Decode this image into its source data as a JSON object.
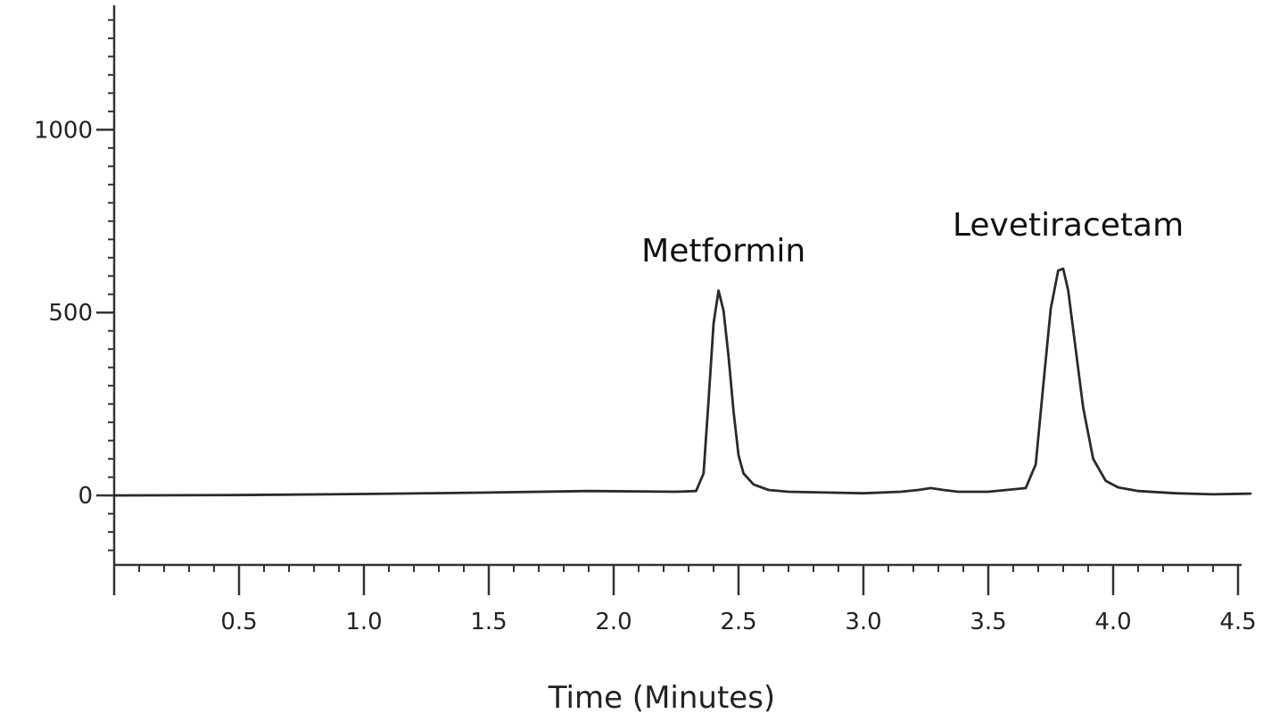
{
  "chart_data": {
    "type": "line",
    "title": "",
    "xlabel": "Time (Minutes)",
    "ylabel": "",
    "xlim": [
      0.0,
      4.55
    ],
    "ylim": [
      -190,
      1340
    ],
    "x_ticks": [
      {
        "value": 0.5,
        "label": "0.5"
      },
      {
        "value": 1.0,
        "label": "1.0"
      },
      {
        "value": 1.5,
        "label": "1.5"
      },
      {
        "value": 2.0,
        "label": "2.0"
      },
      {
        "value": 2.5,
        "label": "2.5"
      },
      {
        "value": 3.0,
        "label": "3.0"
      },
      {
        "value": 3.5,
        "label": "3.5"
      },
      {
        "value": 4.0,
        "label": "4.0"
      },
      {
        "value": 4.5,
        "label": "4.5"
      }
    ],
    "y_ticks": [
      {
        "value": 0,
        "label": "0"
      },
      {
        "value": 500,
        "label": "500"
      },
      {
        "value": 1000,
        "label": "1000"
      }
    ],
    "x_minor_step": 0.1,
    "y_minor_step": 50,
    "grid": false,
    "series": [
      {
        "name": "",
        "x": [
          0.0,
          0.5,
          1.0,
          1.5,
          1.9,
          2.25,
          2.33,
          2.36,
          2.38,
          2.4,
          2.42,
          2.44,
          2.46,
          2.48,
          2.5,
          2.52,
          2.56,
          2.62,
          2.7,
          2.85,
          3.0,
          3.15,
          3.22,
          3.27,
          3.32,
          3.38,
          3.5,
          3.65,
          3.69,
          3.72,
          3.75,
          3.78,
          3.8,
          3.82,
          3.85,
          3.88,
          3.92,
          3.97,
          4.02,
          4.1,
          4.25,
          4.4,
          4.55
        ],
        "y": [
          0,
          1,
          4,
          8,
          12,
          10,
          12,
          60,
          260,
          470,
          560,
          505,
          380,
          230,
          110,
          60,
          30,
          15,
          10,
          8,
          6,
          10,
          15,
          20,
          15,
          10,
          10,
          20,
          85,
          300,
          510,
          615,
          620,
          560,
          400,
          240,
          100,
          40,
          22,
          12,
          6,
          3,
          5
        ]
      }
    ],
    "annotations": [
      {
        "text": "Metformin",
        "x": 2.44,
        "y": 640
      },
      {
        "text": "Levetiracetam",
        "x": 3.82,
        "y": 710
      }
    ]
  }
}
